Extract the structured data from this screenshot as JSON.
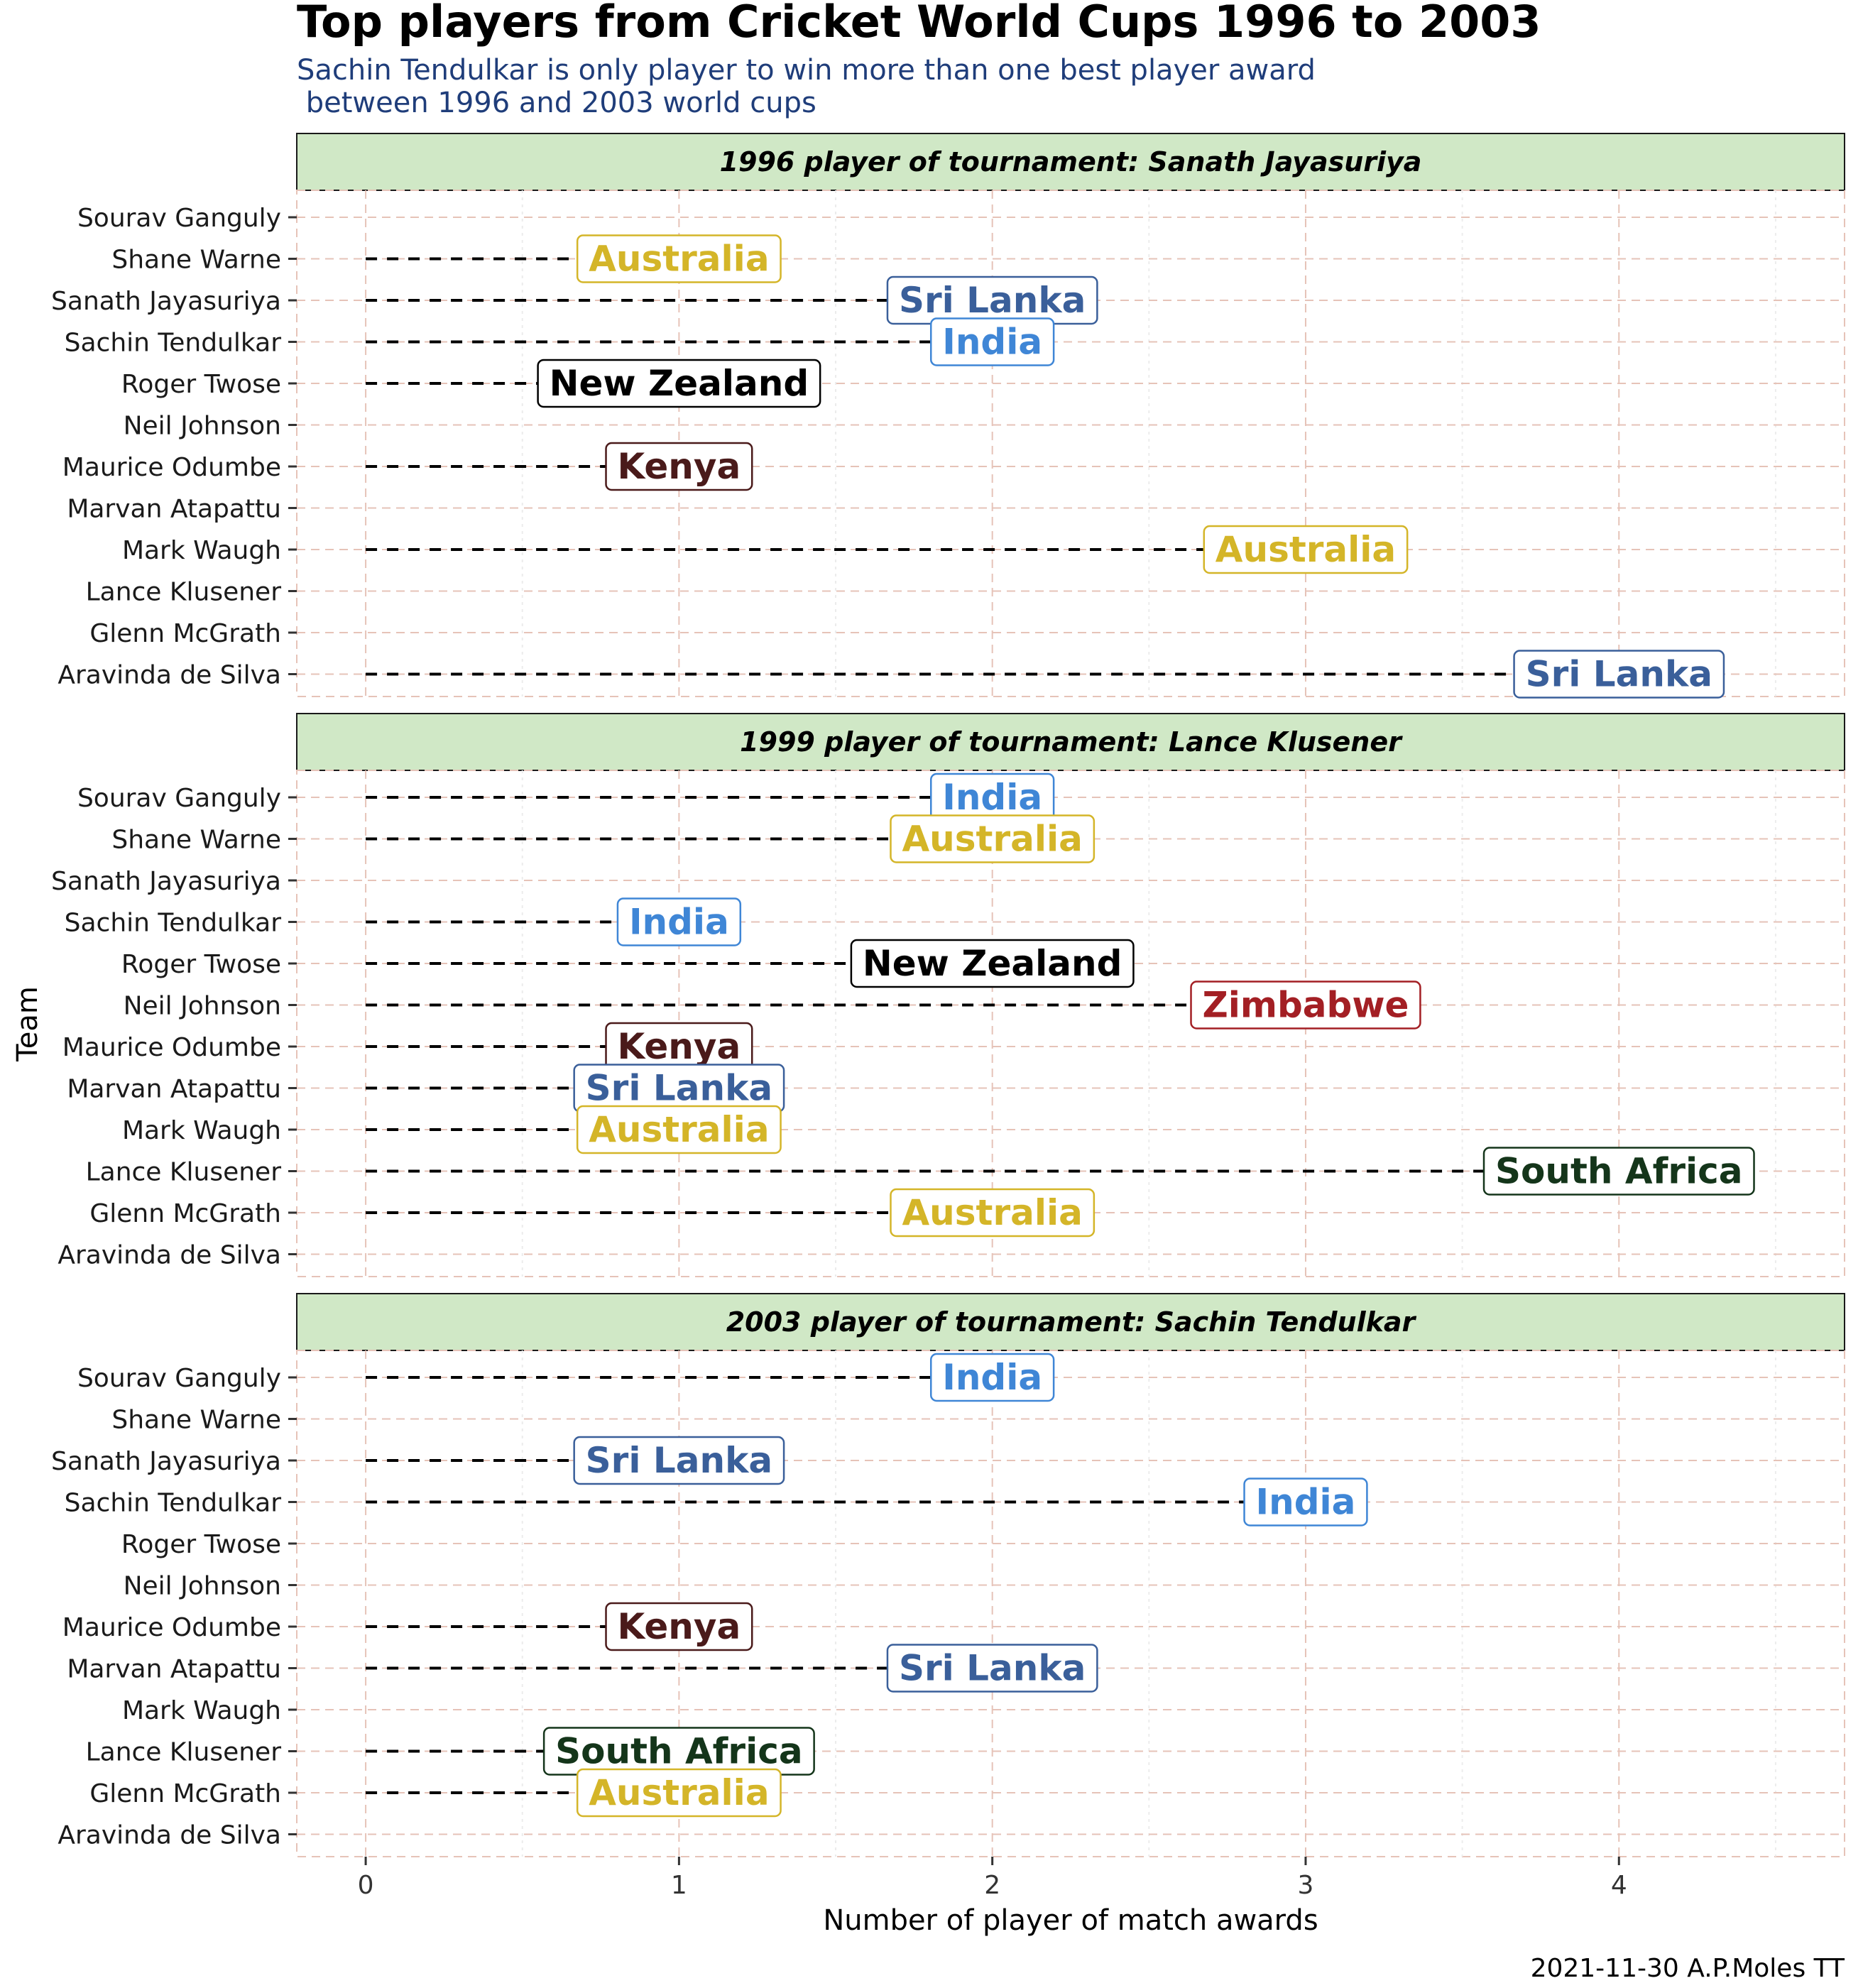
{
  "title": "Top players from Cricket World Cups 1996 to 2003",
  "subtitle_line1": "Sachin Tendulkar is only player to win more than one best player award",
  "subtitle_line2": " between 1996 and 2003 world cups",
  "caption": "2021-11-30 A.P.Moles TT",
  "team_colors": {
    "Australia": "#d4b528",
    "Sri Lanka": "#3a5f9a",
    "India": "#3f86d6",
    "New Zealand": "#000000",
    "Kenya": "#4a1a1a",
    "Zimbabwe": "#a31f24",
    "South Africa": "#14351a"
  },
  "strip_fill": "#d0e8c6",
  "chart_data": {
    "type": "lollipop-label",
    "xlabel": "Number of player of match awards",
    "ylabel": "Team",
    "xlim": [
      -0.22,
      4.72
    ],
    "xticks": [
      0,
      1,
      2,
      3,
      4
    ],
    "players": [
      "Sourav Ganguly",
      "Shane Warne",
      "Sanath Jayasuriya",
      "Sachin Tendulkar",
      "Roger Twose",
      "Neil Johnson",
      "Maurice Odumbe",
      "Marvan Atapattu",
      "Mark Waugh",
      "Lance Klusener",
      "Glenn McGrath",
      "Aravinda de Silva"
    ],
    "panels": [
      {
        "strip": "1996 player of tournament: Sanath Jayasuriya",
        "points": [
          {
            "player": "Shane Warne",
            "team": "Australia",
            "value": 1
          },
          {
            "player": "Sanath Jayasuriya",
            "team": "Sri Lanka",
            "value": 2
          },
          {
            "player": "Sachin Tendulkar",
            "team": "India",
            "value": 2
          },
          {
            "player": "Roger Twose",
            "team": "New Zealand",
            "value": 1
          },
          {
            "player": "Maurice Odumbe",
            "team": "Kenya",
            "value": 1
          },
          {
            "player": "Mark Waugh",
            "team": "Australia",
            "value": 3
          },
          {
            "player": "Aravinda de Silva",
            "team": "Sri Lanka",
            "value": 4
          }
        ]
      },
      {
        "strip": "1999 player of tournament: Lance Klusener",
        "points": [
          {
            "player": "Sourav Ganguly",
            "team": "India",
            "value": 2
          },
          {
            "player": "Shane Warne",
            "team": "Australia",
            "value": 2
          },
          {
            "player": "Sachin Tendulkar",
            "team": "India",
            "value": 1
          },
          {
            "player": "Roger Twose",
            "team": "New Zealand",
            "value": 2
          },
          {
            "player": "Neil Johnson",
            "team": "Zimbabwe",
            "value": 3
          },
          {
            "player": "Maurice Odumbe",
            "team": "Kenya",
            "value": 1
          },
          {
            "player": "Marvan Atapattu",
            "team": "Sri Lanka",
            "value": 1
          },
          {
            "player": "Mark Waugh",
            "team": "Australia",
            "value": 1
          },
          {
            "player": "Lance Klusener",
            "team": "South Africa",
            "value": 4
          },
          {
            "player": "Glenn McGrath",
            "team": "Australia",
            "value": 2
          }
        ]
      },
      {
        "strip": "2003 player of tournament: Sachin Tendulkar",
        "points": [
          {
            "player": "Sourav Ganguly",
            "team": "India",
            "value": 2
          },
          {
            "player": "Sanath Jayasuriya",
            "team": "Sri Lanka",
            "value": 1
          },
          {
            "player": "Sachin Tendulkar",
            "team": "India",
            "value": 3
          },
          {
            "player": "Maurice Odumbe",
            "team": "Kenya",
            "value": 1
          },
          {
            "player": "Marvan Atapattu",
            "team": "Sri Lanka",
            "value": 2
          },
          {
            "player": "Lance Klusener",
            "team": "South Africa",
            "value": 1
          },
          {
            "player": "Glenn McGrath",
            "team": "Australia",
            "value": 1
          }
        ]
      }
    ]
  }
}
